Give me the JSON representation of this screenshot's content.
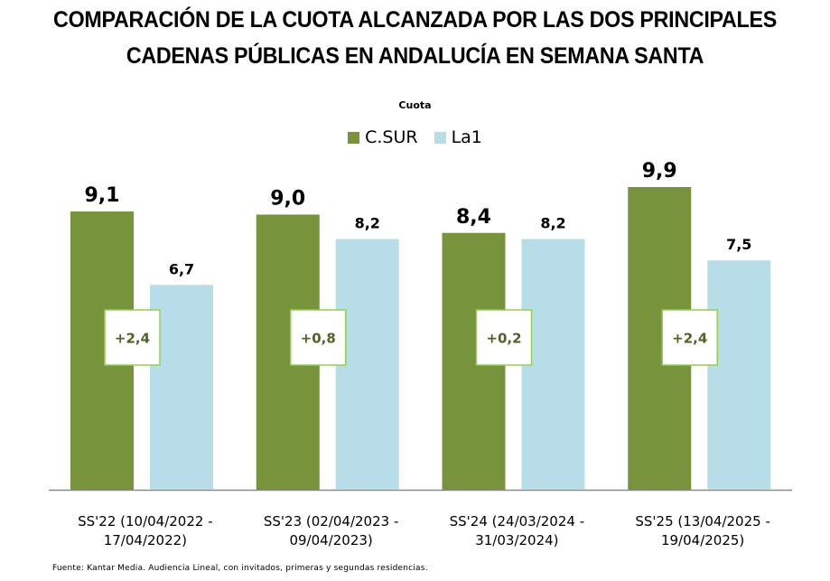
{
  "chart_data": {
    "type": "bar",
    "title": "COMPARACIÓN DE LA CUOTA ALCANZADA POR LAS DOS PRINCIPALES CADENAS PÚBLICAS EN ANDALUCÍA EN SEMANA SANTA",
    "title_lines": [
      "COMPARACIÓN DE LA CUOTA ALCANZADA POR LAS DOS PRINCIPALES",
      "CADENAS PÚBLICAS EN ANDALUCÍA EN SEMANA SANTA"
    ],
    "subtitle": "Cuota",
    "legend_position": "top-center",
    "categories": [
      [
        "SS'22 (10/04/2022 -",
        "17/04/2022)"
      ],
      [
        "SS'23 (02/04/2023 -",
        "09/04/2023)"
      ],
      [
        "SS'24 (24/03/2024 -",
        "31/03/2024)"
      ],
      [
        "SS'25 (13/04/2025 -",
        "19/04/2025)"
      ]
    ],
    "series": [
      {
        "name": "C.SUR",
        "color": "#77933c",
        "values": [
          9.1,
          9.0,
          8.4,
          9.9
        ],
        "labels": [
          "9,1",
          "9,0",
          "8,4",
          "9,9"
        ]
      },
      {
        "name": "La1",
        "color": "#b7dde8",
        "values": [
          6.7,
          8.2,
          8.2,
          7.5
        ],
        "labels": [
          "6,7",
          "8,2",
          "8,2",
          "7,5"
        ]
      }
    ],
    "differences": [
      "+2,4",
      "+0,8",
      "+0,2",
      "+2,4"
    ],
    "ylim": [
      0,
      9.9
    ],
    "grid": false,
    "xlabel": "",
    "ylabel": "",
    "source": "Fuente: Kantar Media. Audiencia Lineal, con invitados, primeras y segundas residencias."
  }
}
